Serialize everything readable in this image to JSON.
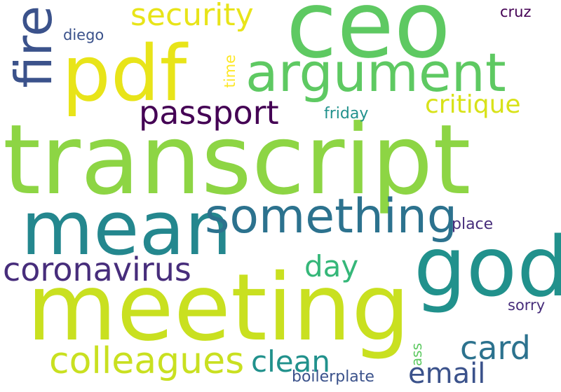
{
  "words": {
    "transcript": {
      "text": "transcript",
      "color": "#8dd544"
    },
    "meeting": {
      "text": "meeting",
      "color": "#c9e020"
    },
    "ceo": {
      "text": "ceo",
      "color": "#5ec962"
    },
    "god": {
      "text": "god",
      "color": "#21918c"
    },
    "mean": {
      "text": "mean",
      "color": "#24878e"
    },
    "pdf": {
      "text": "pdf",
      "color": "#e8e419"
    },
    "argument": {
      "text": "argument",
      "color": "#5ec962"
    },
    "something": {
      "text": "something",
      "color": "#2c728e"
    },
    "fire": {
      "text": "fire",
      "color": "#3b528b"
    },
    "colleagues": {
      "text": "colleagues",
      "color": "#c9e020"
    },
    "coronavirus": {
      "text": "coronavirus",
      "color": "#472d7b"
    },
    "passport": {
      "text": "passport",
      "color": "#440154"
    },
    "security": {
      "text": "security",
      "color": "#e8e419"
    },
    "card": {
      "text": "card",
      "color": "#2c728e"
    },
    "email": {
      "text": "email",
      "color": "#3b528b"
    },
    "clean": {
      "text": "clean",
      "color": "#21918c"
    },
    "critique": {
      "text": "critique",
      "color": "#d8e219"
    },
    "day": {
      "text": "day",
      "color": "#35b779"
    },
    "boilerplate": {
      "text": "boilerplate",
      "color": "#3b528b"
    },
    "place": {
      "text": "place",
      "color": "#472d7b"
    },
    "sorry": {
      "text": "sorry",
      "color": "#472d7b"
    },
    "friday": {
      "text": "friday",
      "color": "#21918c"
    },
    "diego": {
      "text": "diego",
      "color": "#3b528b"
    },
    "cruz": {
      "text": "cruz",
      "color": "#440154"
    },
    "time": {
      "text": "time",
      "color": "#fde725"
    },
    "ass": {
      "text": "ass",
      "color": "#5ec962"
    }
  }
}
